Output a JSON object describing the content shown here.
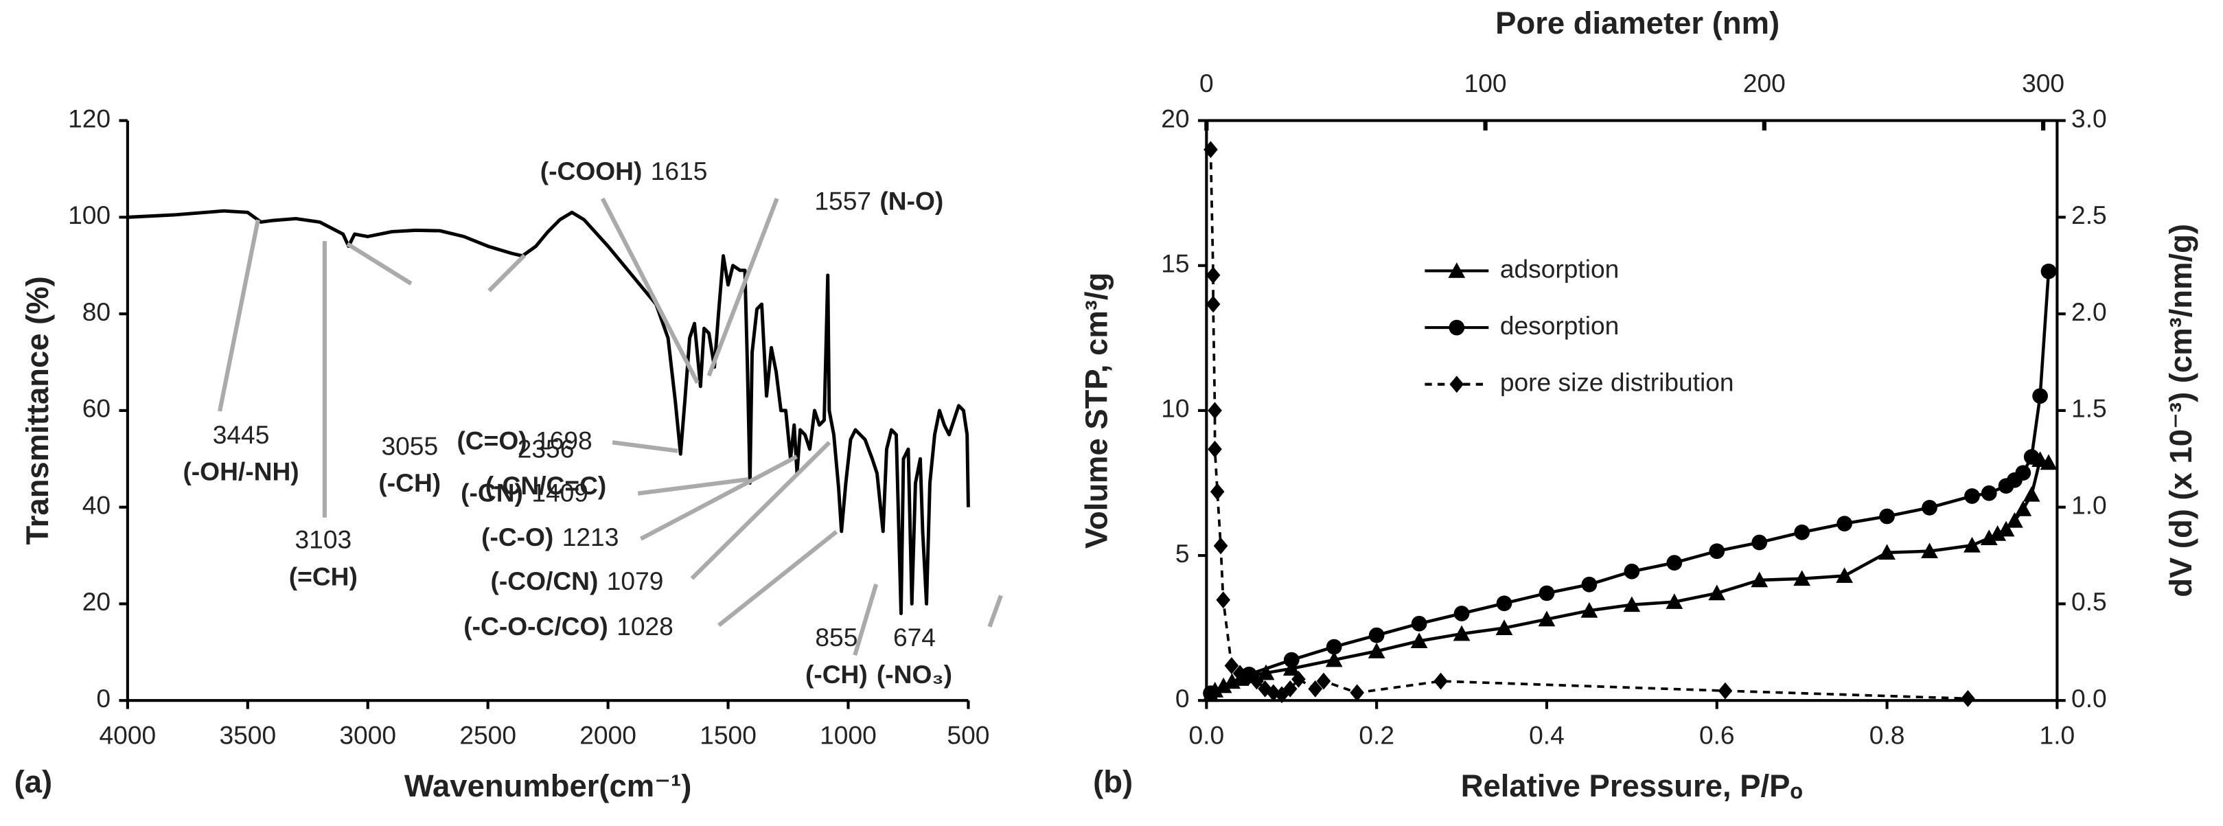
{
  "chart_data": [
    {
      "type": "line",
      "panel_label": "(a)",
      "x_label": "Wavenumber(cm⁻¹)",
      "y_label": "Transmittance (%)",
      "xlim": [
        4000,
        500
      ],
      "xticks": [
        4000,
        3500,
        3000,
        2500,
        2000,
        1500,
        1000,
        500
      ],
      "ylim": [
        0,
        120
      ],
      "yticks": [
        0,
        20,
        40,
        60,
        80,
        100,
        120
      ],
      "color": "#000000",
      "annotation_color": "#aaaaaa",
      "x": [
        4000,
        3800,
        3600,
        3500,
        3445,
        3400,
        3300,
        3200,
        3103,
        3080,
        3055,
        3000,
        2900,
        2800,
        2700,
        2600,
        2500,
        2400,
        2356,
        2300,
        2250,
        2200,
        2150,
        2100,
        2000,
        1900,
        1800,
        1750,
        1720,
        1698,
        1680,
        1660,
        1640,
        1615,
        1600,
        1580,
        1557,
        1540,
        1520,
        1500,
        1480,
        1450,
        1430,
        1420,
        1409,
        1400,
        1380,
        1360,
        1340,
        1320,
        1300,
        1280,
        1260,
        1240,
        1225,
        1213,
        1200,
        1180,
        1160,
        1140,
        1120,
        1100,
        1090,
        1085,
        1079,
        1060,
        1040,
        1028,
        1010,
        990,
        970,
        950,
        930,
        900,
        880,
        855,
        840,
        820,
        800,
        780,
        770,
        750,
        735,
        720,
        700,
        690,
        674,
        660,
        640,
        620,
        600,
        580,
        560,
        540,
        520,
        505,
        500
      ],
      "values": [
        100,
        100.5,
        101.3,
        101,
        99,
        99.3,
        99.7,
        99,
        96.5,
        94,
        96.5,
        96,
        97,
        97.3,
        97.2,
        96,
        94,
        92.5,
        92,
        94,
        97,
        99.5,
        101,
        99.5,
        94,
        88,
        82,
        75,
        62,
        51,
        62,
        75,
        78,
        65,
        77,
        76,
        69,
        80,
        92,
        86,
        90,
        89,
        89,
        70,
        45,
        72,
        81,
        82,
        63,
        73,
        68,
        60,
        60,
        50,
        57,
        47,
        56,
        55,
        52,
        60,
        57,
        58,
        78,
        88,
        60,
        55,
        44,
        35,
        45,
        54,
        56,
        55,
        54,
        50,
        47,
        35,
        52,
        56,
        55,
        18,
        50,
        52,
        20,
        45,
        50,
        35,
        20,
        45,
        55,
        60,
        57,
        55,
        58,
        61,
        60,
        55,
        40
      ],
      "annotations": [
        {
          "text": "3445",
          "note": "(-OH/-NH)"
        },
        {
          "text": "3103",
          "note": "(=CH)"
        },
        {
          "text": "3055",
          "note": "(-CH)"
        },
        {
          "text": "2356",
          "note": "(-CN/C=C)"
        },
        {
          "note": "(-COOH)",
          "text": "1615"
        },
        {
          "text": "1557",
          "note": "(N-O)"
        },
        {
          "note": "(C=O)",
          "text": "1698"
        },
        {
          "note": "(-CN)",
          "text": "1409"
        },
        {
          "note": "(-C-O)",
          "text": "1213"
        },
        {
          "note": "(-CO/CN)",
          "text": "1079"
        },
        {
          "note": "(-C-O-C/CO)",
          "text": "1028"
        },
        {
          "text": "855",
          "note": "(-CH)"
        },
        {
          "text": "674",
          "note": "(-NO₃)"
        }
      ]
    },
    {
      "type": "line",
      "panel_label": "(b)",
      "x_label": "Relative Pressure, P/Pₒ",
      "x2_label": "Pore diameter (nm)",
      "y_label": "Volume  STP, cm³/g",
      "y2_label": "dV (d) (x 10⁻³) (cm³/nm/g)",
      "xlim": [
        0,
        1
      ],
      "xticks": [
        {
          "value": 0,
          "label": "0.0"
        },
        {
          "value": 0.2,
          "label": "0.2"
        },
        {
          "value": 0.4,
          "label": "0.4"
        },
        {
          "value": 0.6,
          "label": "0.6"
        },
        {
          "value": 0.8,
          "label": "0.8"
        },
        {
          "value": 1,
          "label": "1.0"
        }
      ],
      "x2lim": [
        0,
        305
      ],
      "x2ticks": [
        0,
        100,
        200,
        300
      ],
      "ylim": [
        0,
        20
      ],
      "yticks": [
        0,
        5,
        10,
        15,
        20
      ],
      "y2lim": [
        0,
        3
      ],
      "y2ticks": [
        {
          "value": 0,
          "label": "0.0"
        },
        {
          "value": 0.5,
          "label": "0.5"
        },
        {
          "value": 1,
          "label": "1.0"
        },
        {
          "value": 1.5,
          "label": "1.5"
        },
        {
          "value": 2,
          "label": "2.0"
        },
        {
          "value": 2.5,
          "label": "2.5"
        },
        {
          "value": 3,
          "label": "3.0"
        }
      ],
      "series": [
        {
          "name": "adsorption",
          "color": "#000000",
          "marker": "triangle",
          "dash": false,
          "x": [
            0.005,
            0.01,
            0.02,
            0.03,
            0.04,
            0.05,
            0.07,
            0.1,
            0.15,
            0.2,
            0.25,
            0.3,
            0.35,
            0.4,
            0.45,
            0.5,
            0.55,
            0.6,
            0.65,
            0.7,
            0.75,
            0.8,
            0.85,
            0.9,
            0.92,
            0.93,
            0.94,
            0.95,
            0.96,
            0.97,
            0.98,
            0.99
          ],
          "values": [
            0.2,
            0.35,
            0.5,
            0.65,
            0.75,
            0.85,
            0.95,
            1.1,
            1.4,
            1.7,
            2.05,
            2.3,
            2.5,
            2.8,
            3.1,
            3.3,
            3.4,
            3.7,
            4.15,
            4.2,
            4.3,
            5.1,
            5.15,
            5.35,
            5.6,
            5.75,
            5.9,
            6.2,
            6.6,
            7.1,
            8.3,
            8.2
          ]
        },
        {
          "name": "desorption",
          "color": "#000000",
          "marker": "circle",
          "dash": false,
          "x": [
            0.005,
            0.05,
            0.1,
            0.15,
            0.2,
            0.25,
            0.3,
            0.35,
            0.4,
            0.45,
            0.5,
            0.55,
            0.6,
            0.65,
            0.7,
            0.75,
            0.8,
            0.85,
            0.9,
            0.92,
            0.94,
            0.95,
            0.96,
            0.97,
            0.98,
            0.99
          ],
          "values": [
            0.25,
            0.9,
            1.4,
            1.85,
            2.25,
            2.65,
            3.0,
            3.35,
            3.7,
            4.0,
            4.45,
            4.75,
            5.15,
            5.45,
            5.8,
            6.1,
            6.35,
            6.65,
            7.05,
            7.15,
            7.4,
            7.6,
            7.85,
            8.4,
            10.5,
            14.8
          ]
        },
        {
          "name": "pore size distribution",
          "color": "#000000",
          "marker": "diamond",
          "dash": true,
          "axis": "y2",
          "xaxis": "x2",
          "x": [
            1.5,
            2.4,
            2.4,
            3,
            3,
            3.9,
            5.1,
            6,
            9,
            12,
            15,
            18,
            21,
            24,
            27,
            30,
            33,
            39,
            42,
            54,
            84,
            186,
            273
          ],
          "values": [
            2.85,
            2.2,
            2.05,
            1.5,
            1.3,
            1.08,
            0.8,
            0.52,
            0.18,
            0.14,
            0.12,
            0.1,
            0.06,
            0.04,
            0.03,
            0.06,
            0.11,
            0.06,
            0.1,
            0.04,
            0.1,
            0.05,
            0.01
          ]
        }
      ]
    }
  ]
}
